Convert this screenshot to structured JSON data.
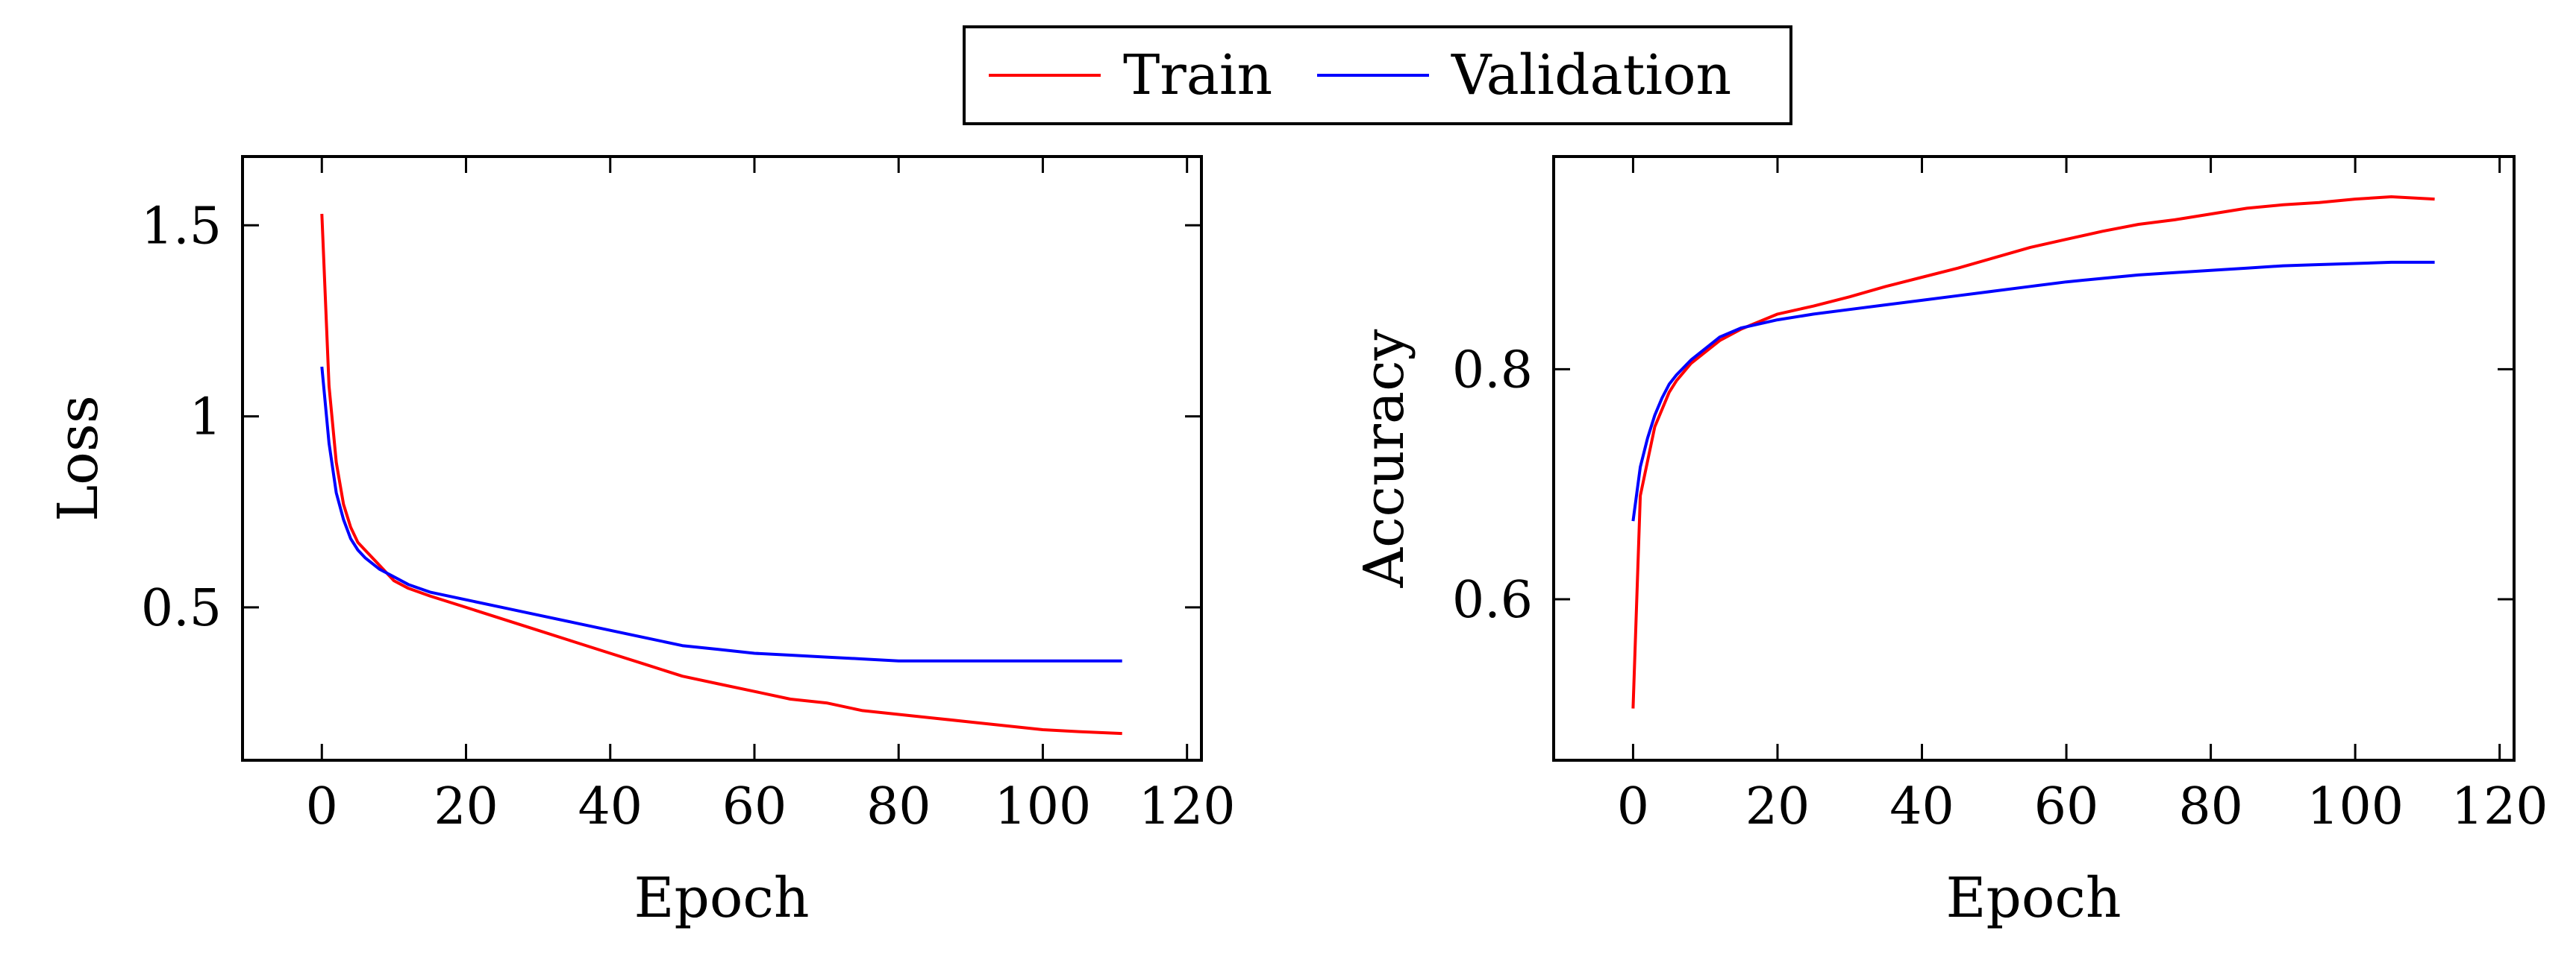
{
  "legend": {
    "entries": [
      {
        "label": "Train",
        "color": "#ff0000"
      },
      {
        "label": "Validation",
        "color": "#0000ff"
      }
    ]
  },
  "colors": {
    "train": "#ff0000",
    "validation": "#0000ff",
    "axis": "#000000"
  },
  "chart_data": [
    {
      "type": "line",
      "title": "",
      "xlabel": "Epoch",
      "ylabel": "Loss",
      "xlim": [
        -11,
        122
      ],
      "ylim": [
        0.1,
        1.68
      ],
      "xticks": [
        0,
        20,
        40,
        60,
        80,
        100,
        120
      ],
      "xtick_labels": [
        "0",
        "20",
        "40",
        "60",
        "80",
        "100",
        "120"
      ],
      "yticks": [
        0.5,
        1,
        1.5
      ],
      "ytick_labels": [
        "0.5",
        "1",
        "1.5"
      ],
      "legend": "top-center (shared)",
      "grid": false,
      "series": [
        {
          "name": "Train",
          "color": "#ff0000",
          "x": [
            0,
            1,
            2,
            3,
            4,
            5,
            6,
            8,
            10,
            12,
            15,
            20,
            25,
            30,
            35,
            40,
            45,
            50,
            55,
            60,
            65,
            70,
            75,
            80,
            85,
            90,
            95,
            100,
            105,
            111
          ],
          "values": [
            1.53,
            1.08,
            0.88,
            0.77,
            0.71,
            0.67,
            0.65,
            0.61,
            0.57,
            0.55,
            0.53,
            0.5,
            0.47,
            0.44,
            0.41,
            0.38,
            0.35,
            0.32,
            0.3,
            0.28,
            0.26,
            0.25,
            0.23,
            0.22,
            0.21,
            0.2,
            0.19,
            0.18,
            0.175,
            0.17
          ]
        },
        {
          "name": "Validation",
          "color": "#0000ff",
          "x": [
            0,
            1,
            2,
            3,
            4,
            5,
            6,
            8,
            10,
            12,
            15,
            20,
            25,
            30,
            35,
            40,
            45,
            50,
            55,
            60,
            65,
            70,
            75,
            80,
            85,
            90,
            95,
            100,
            105,
            111
          ],
          "values": [
            1.13,
            0.93,
            0.8,
            0.73,
            0.68,
            0.65,
            0.63,
            0.6,
            0.58,
            0.56,
            0.54,
            0.52,
            0.5,
            0.48,
            0.46,
            0.44,
            0.42,
            0.4,
            0.39,
            0.38,
            0.375,
            0.37,
            0.365,
            0.36,
            0.36,
            0.36,
            0.36,
            0.36,
            0.36,
            0.36
          ]
        }
      ]
    },
    {
      "type": "line",
      "title": "",
      "xlabel": "Epoch",
      "ylabel": "Accuracy",
      "xlim": [
        -11,
        122
      ],
      "ylim": [
        0.46,
        0.985
      ],
      "xticks": [
        0,
        20,
        40,
        60,
        80,
        100,
        120
      ],
      "xtick_labels": [
        "0",
        "20",
        "40",
        "60",
        "80",
        "100",
        "120"
      ],
      "yticks": [
        0.6,
        0.8
      ],
      "ytick_labels": [
        "0.6",
        "0.8"
      ],
      "legend": "top-center (shared)",
      "grid": false,
      "series": [
        {
          "name": "Train",
          "color": "#ff0000",
          "x": [
            0,
            1,
            2,
            3,
            4,
            5,
            6,
            8,
            10,
            12,
            15,
            20,
            25,
            30,
            35,
            40,
            45,
            50,
            55,
            60,
            65,
            70,
            75,
            80,
            85,
            90,
            95,
            100,
            105,
            111
          ],
          "values": [
            0.505,
            0.69,
            0.72,
            0.75,
            0.765,
            0.78,
            0.79,
            0.805,
            0.815,
            0.825,
            0.835,
            0.848,
            0.855,
            0.863,
            0.872,
            0.88,
            0.888,
            0.897,
            0.906,
            0.913,
            0.92,
            0.926,
            0.93,
            0.935,
            0.94,
            0.943,
            0.945,
            0.948,
            0.95,
            0.948
          ]
        },
        {
          "name": "Validation",
          "color": "#0000ff",
          "x": [
            0,
            1,
            2,
            3,
            4,
            5,
            6,
            8,
            10,
            12,
            15,
            20,
            25,
            30,
            35,
            40,
            45,
            50,
            55,
            60,
            65,
            70,
            75,
            80,
            85,
            90,
            95,
            100,
            105,
            111
          ],
          "values": [
            0.668,
            0.715,
            0.74,
            0.76,
            0.775,
            0.787,
            0.795,
            0.808,
            0.818,
            0.828,
            0.836,
            0.843,
            0.848,
            0.852,
            0.856,
            0.86,
            0.864,
            0.868,
            0.872,
            0.876,
            0.879,
            0.882,
            0.884,
            0.886,
            0.888,
            0.89,
            0.891,
            0.892,
            0.893,
            0.893
          ]
        }
      ]
    }
  ]
}
